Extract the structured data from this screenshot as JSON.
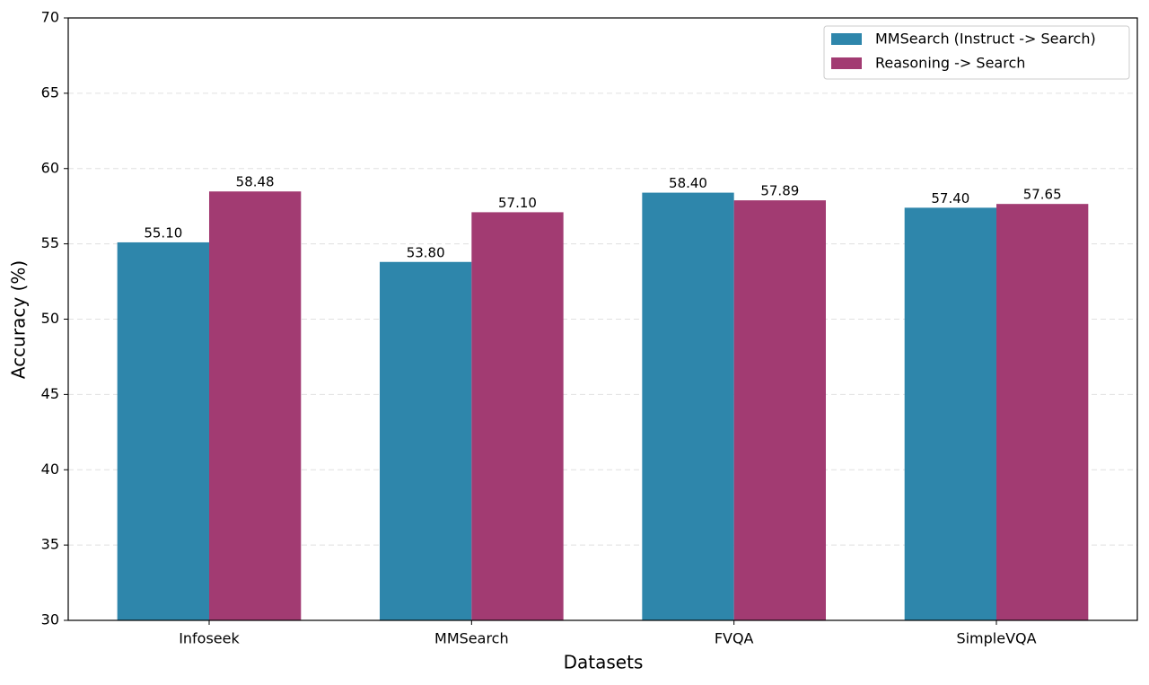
{
  "chart_data": {
    "type": "bar",
    "xlabel": "Datasets",
    "ylabel": "Accuracy (%)",
    "categories": [
      "Infoseek",
      "MMSearch",
      "FVQA",
      "SimpleVQA"
    ],
    "series": [
      {
        "name": "MMSearch (Instruct -> Search)",
        "color": "#2e86ab",
        "values": [
          55.1,
          53.8,
          58.4,
          57.4
        ],
        "value_labels": [
          "55.10",
          "53.80",
          "58.40",
          "57.40"
        ]
      },
      {
        "name": "Reasoning -> Search",
        "color": "#a23b72",
        "values": [
          58.48,
          57.1,
          57.89,
          57.65
        ],
        "value_labels": [
          "58.48",
          "57.10",
          "57.89",
          "57.65"
        ]
      }
    ],
    "ylim": [
      30,
      70
    ],
    "yticks": [
      30,
      35,
      40,
      45,
      50,
      55,
      60,
      65,
      70
    ],
    "grid": true,
    "legend": "upper right"
  }
}
